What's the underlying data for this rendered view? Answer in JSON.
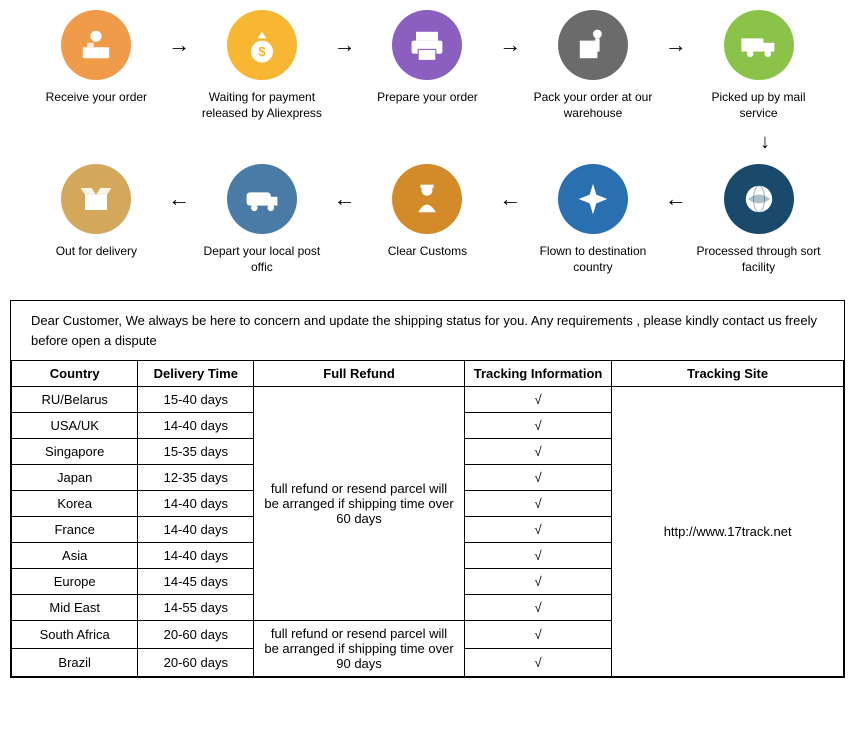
{
  "steps_top": [
    {
      "label": "Receive your order",
      "color": "#f09b4a"
    },
    {
      "label": "Waiting for payment released by Aliexpress",
      "color": "#f7b733"
    },
    {
      "label": "Prepare your order",
      "color": "#8b5fbf"
    },
    {
      "label": "Pack your order at our warehouse",
      "color": "#6b6b6b"
    },
    {
      "label": "Picked up by mail service",
      "color": "#8bc34a"
    }
  ],
  "steps_bottom": [
    {
      "label": "Out for delivery",
      "color": "#d4a85a"
    },
    {
      "label": "Depart your local post offic",
      "color": "#4a7ba6"
    },
    {
      "label": "Clear  Customs",
      "color": "#d38b2a"
    },
    {
      "label": "Flown to destination country",
      "color": "#2a6fb0"
    },
    {
      "label": "Processed through sort facility",
      "color": "#1a4a6b"
    }
  ],
  "notice": "Dear Customer, We always be here to concern and update the shipping status for you.  Any requirements , please kindly contact us freely before open a dispute",
  "table": {
    "headers": {
      "country": "Country",
      "delivery": "Delivery Time",
      "refund": "Full Refund",
      "tracking": "Tracking Information",
      "site": "Tracking Site"
    },
    "refund_60": "full refund or resend parcel will be arranged if shipping time over 60 days",
    "refund_90": "full refund or resend parcel will be arranged if shipping time over 90 days",
    "tracking_site": "http://www.17track.net",
    "check": "√",
    "rows60": [
      {
        "country": "RU/Belarus",
        "delivery": "15-40 days"
      },
      {
        "country": "USA/UK",
        "delivery": "14-40 days"
      },
      {
        "country": "Singapore",
        "delivery": "15-35 days"
      },
      {
        "country": "Japan",
        "delivery": "12-35 days"
      },
      {
        "country": "Korea",
        "delivery": "14-40 days"
      },
      {
        "country": "France",
        "delivery": "14-40 days"
      },
      {
        "country": "Asia",
        "delivery": "14-40 days"
      },
      {
        "country": "Europe",
        "delivery": "14-45 days"
      },
      {
        "country": "Mid East",
        "delivery": "14-55 days"
      }
    ],
    "rows90": [
      {
        "country": "South Africa",
        "delivery": "20-60 days"
      },
      {
        "country": "Brazil",
        "delivery": "20-60 days"
      }
    ]
  },
  "icons": {
    "0": "person-desk",
    "1": "money-bag",
    "2": "printer",
    "3": "box-pack",
    "4": "truck",
    "5": "box-open",
    "6": "van",
    "7": "customs-officer",
    "8": "airplane",
    "9": "globe"
  }
}
